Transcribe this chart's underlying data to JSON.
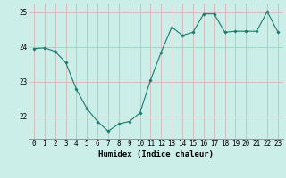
{
  "x": [
    0,
    1,
    2,
    3,
    4,
    5,
    6,
    7,
    8,
    9,
    10,
    11,
    12,
    13,
    14,
    15,
    16,
    17,
    18,
    19,
    20,
    21,
    22,
    23
  ],
  "y": [
    23.95,
    23.97,
    23.87,
    23.55,
    22.78,
    22.22,
    21.85,
    21.57,
    21.78,
    21.85,
    22.1,
    23.05,
    23.85,
    24.57,
    24.33,
    24.42,
    24.95,
    24.95,
    24.42,
    24.45,
    24.45,
    24.45,
    25.02,
    24.43
  ],
  "line_color": "#1a7a6e",
  "marker": "D",
  "marker_size": 1.8,
  "bg_color": "#cceee8",
  "grid_color": "#d4b8b8",
  "xlabel": "Humidex (Indice chaleur)",
  "ylabel": "",
  "yticks": [
    22,
    23,
    24,
    25
  ],
  "xticks": [
    0,
    1,
    2,
    3,
    4,
    5,
    6,
    7,
    8,
    9,
    10,
    11,
    12,
    13,
    14,
    15,
    16,
    17,
    18,
    19,
    20,
    21,
    22,
    23
  ],
  "ylim": [
    21.35,
    25.25
  ],
  "xlim": [
    -0.5,
    23.5
  ],
  "xlabel_fontsize": 6.5,
  "tick_fontsize": 5.5,
  "linewidth": 0.8
}
